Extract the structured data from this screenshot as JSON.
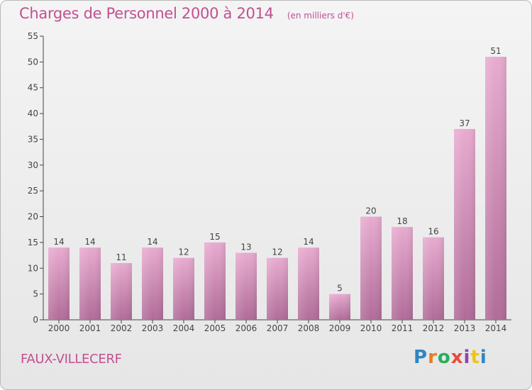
{
  "header": {
    "title": "Charges de Personnel 2000 à 2014",
    "unit": "(en milliers d'€)"
  },
  "footer": {
    "commune": "FAUX-VILLECERF",
    "logo_text": "Proxiti",
    "logo_colors": [
      "#2e86c1",
      "#e67e22",
      "#27ae60",
      "#e74c3c",
      "#8e44ad",
      "#f1c40f",
      "#2e86c1"
    ]
  },
  "colors": {
    "bar_light": "#e8abd0",
    "bar_dark": "#b06c98",
    "title": "#c2508f"
  },
  "chart_data": {
    "type": "bar",
    "categories": [
      "2000",
      "2001",
      "2002",
      "2003",
      "2004",
      "2005",
      "2006",
      "2007",
      "2008",
      "2009",
      "2010",
      "2011",
      "2012",
      "2013",
      "2014"
    ],
    "values": [
      14,
      14,
      11,
      14,
      12,
      15,
      13,
      12,
      14,
      5,
      20,
      18,
      16,
      37,
      51
    ],
    "ylim": [
      0,
      55
    ],
    "yticks": [
      0,
      5,
      10,
      15,
      20,
      25,
      30,
      35,
      40,
      45,
      50,
      55
    ],
    "grid": false
  }
}
